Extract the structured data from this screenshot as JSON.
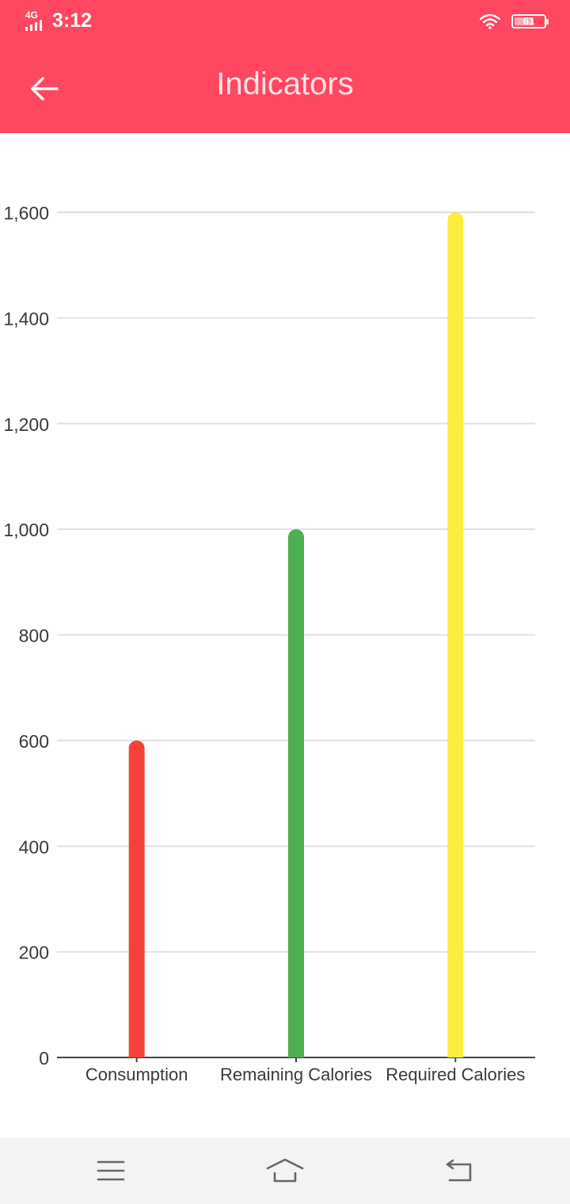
{
  "status_bar": {
    "network": "4G",
    "time": "3:12",
    "battery": "61"
  },
  "app_bar": {
    "title": "Indicators"
  },
  "chart_data": {
    "type": "bar",
    "categories": [
      "Consumption",
      "Remaining Calories",
      "Required Calories"
    ],
    "values": [
      600,
      1000,
      1600
    ],
    "colors": [
      "#f44336",
      "#4caf50",
      "#ffeb3b"
    ],
    "ylim": [
      0,
      1600
    ],
    "yticks": [
      0,
      200,
      400,
      600,
      800,
      1000,
      1200,
      1400,
      1600
    ],
    "ytick_labels": [
      "0",
      "200",
      "400",
      "600",
      "800",
      "1,000",
      "1,200",
      "1,400",
      "1,600"
    ],
    "grid": true,
    "title": "",
    "xlabel": "",
    "ylabel": ""
  },
  "nav_bar": {
    "icons": [
      "menu-icon",
      "home-icon",
      "back-icon"
    ]
  }
}
